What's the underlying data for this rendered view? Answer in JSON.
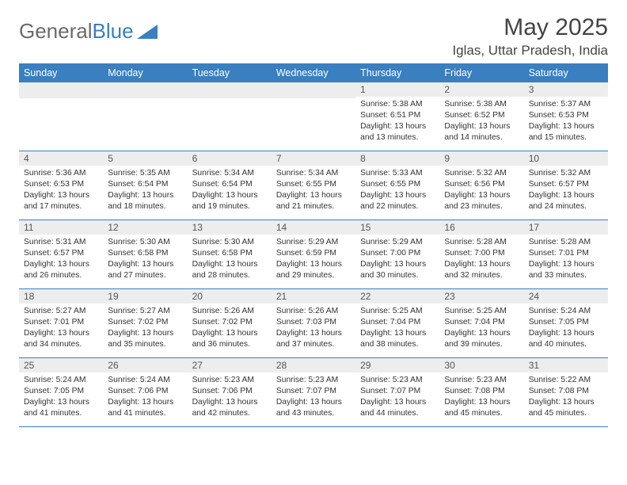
{
  "logo": {
    "text1": "General",
    "text2": "Blue"
  },
  "title": "May 2025",
  "location": "Iglas, Uttar Pradesh, India",
  "theme": {
    "header_bg": "#3a7fbf",
    "header_fg": "#ffffff",
    "daynum_bg": "#ededed",
    "row_border": "#3a7fbf",
    "title_color": "#444444",
    "text_color": "#333333",
    "logo_gray": "#6a6a6a",
    "logo_blue": "#3a7fbf"
  },
  "dow": [
    "Sunday",
    "Monday",
    "Tuesday",
    "Wednesday",
    "Thursday",
    "Friday",
    "Saturday"
  ],
  "weeks": [
    [
      {
        "empty": true
      },
      {
        "empty": true
      },
      {
        "empty": true
      },
      {
        "empty": true
      },
      {
        "n": "1",
        "sr": "Sunrise: 5:38 AM",
        "ss": "Sunset: 6:51 PM",
        "d1": "Daylight: 13 hours",
        "d2": "and 13 minutes."
      },
      {
        "n": "2",
        "sr": "Sunrise: 5:38 AM",
        "ss": "Sunset: 6:52 PM",
        "d1": "Daylight: 13 hours",
        "d2": "and 14 minutes."
      },
      {
        "n": "3",
        "sr": "Sunrise: 5:37 AM",
        "ss": "Sunset: 6:53 PM",
        "d1": "Daylight: 13 hours",
        "d2": "and 15 minutes."
      }
    ],
    [
      {
        "n": "4",
        "sr": "Sunrise: 5:36 AM",
        "ss": "Sunset: 6:53 PM",
        "d1": "Daylight: 13 hours",
        "d2": "and 17 minutes."
      },
      {
        "n": "5",
        "sr": "Sunrise: 5:35 AM",
        "ss": "Sunset: 6:54 PM",
        "d1": "Daylight: 13 hours",
        "d2": "and 18 minutes."
      },
      {
        "n": "6",
        "sr": "Sunrise: 5:34 AM",
        "ss": "Sunset: 6:54 PM",
        "d1": "Daylight: 13 hours",
        "d2": "and 19 minutes."
      },
      {
        "n": "7",
        "sr": "Sunrise: 5:34 AM",
        "ss": "Sunset: 6:55 PM",
        "d1": "Daylight: 13 hours",
        "d2": "and 21 minutes."
      },
      {
        "n": "8",
        "sr": "Sunrise: 5:33 AM",
        "ss": "Sunset: 6:55 PM",
        "d1": "Daylight: 13 hours",
        "d2": "and 22 minutes."
      },
      {
        "n": "9",
        "sr": "Sunrise: 5:32 AM",
        "ss": "Sunset: 6:56 PM",
        "d1": "Daylight: 13 hours",
        "d2": "and 23 minutes."
      },
      {
        "n": "10",
        "sr": "Sunrise: 5:32 AM",
        "ss": "Sunset: 6:57 PM",
        "d1": "Daylight: 13 hours",
        "d2": "and 24 minutes."
      }
    ],
    [
      {
        "n": "11",
        "sr": "Sunrise: 5:31 AM",
        "ss": "Sunset: 6:57 PM",
        "d1": "Daylight: 13 hours",
        "d2": "and 26 minutes."
      },
      {
        "n": "12",
        "sr": "Sunrise: 5:30 AM",
        "ss": "Sunset: 6:58 PM",
        "d1": "Daylight: 13 hours",
        "d2": "and 27 minutes."
      },
      {
        "n": "13",
        "sr": "Sunrise: 5:30 AM",
        "ss": "Sunset: 6:58 PM",
        "d1": "Daylight: 13 hours",
        "d2": "and 28 minutes."
      },
      {
        "n": "14",
        "sr": "Sunrise: 5:29 AM",
        "ss": "Sunset: 6:59 PM",
        "d1": "Daylight: 13 hours",
        "d2": "and 29 minutes."
      },
      {
        "n": "15",
        "sr": "Sunrise: 5:29 AM",
        "ss": "Sunset: 7:00 PM",
        "d1": "Daylight: 13 hours",
        "d2": "and 30 minutes."
      },
      {
        "n": "16",
        "sr": "Sunrise: 5:28 AM",
        "ss": "Sunset: 7:00 PM",
        "d1": "Daylight: 13 hours",
        "d2": "and 32 minutes."
      },
      {
        "n": "17",
        "sr": "Sunrise: 5:28 AM",
        "ss": "Sunset: 7:01 PM",
        "d1": "Daylight: 13 hours",
        "d2": "and 33 minutes."
      }
    ],
    [
      {
        "n": "18",
        "sr": "Sunrise: 5:27 AM",
        "ss": "Sunset: 7:01 PM",
        "d1": "Daylight: 13 hours",
        "d2": "and 34 minutes."
      },
      {
        "n": "19",
        "sr": "Sunrise: 5:27 AM",
        "ss": "Sunset: 7:02 PM",
        "d1": "Daylight: 13 hours",
        "d2": "and 35 minutes."
      },
      {
        "n": "20",
        "sr": "Sunrise: 5:26 AM",
        "ss": "Sunset: 7:02 PM",
        "d1": "Daylight: 13 hours",
        "d2": "and 36 minutes."
      },
      {
        "n": "21",
        "sr": "Sunrise: 5:26 AM",
        "ss": "Sunset: 7:03 PM",
        "d1": "Daylight: 13 hours",
        "d2": "and 37 minutes."
      },
      {
        "n": "22",
        "sr": "Sunrise: 5:25 AM",
        "ss": "Sunset: 7:04 PM",
        "d1": "Daylight: 13 hours",
        "d2": "and 38 minutes."
      },
      {
        "n": "23",
        "sr": "Sunrise: 5:25 AM",
        "ss": "Sunset: 7:04 PM",
        "d1": "Daylight: 13 hours",
        "d2": "and 39 minutes."
      },
      {
        "n": "24",
        "sr": "Sunrise: 5:24 AM",
        "ss": "Sunset: 7:05 PM",
        "d1": "Daylight: 13 hours",
        "d2": "and 40 minutes."
      }
    ],
    [
      {
        "n": "25",
        "sr": "Sunrise: 5:24 AM",
        "ss": "Sunset: 7:05 PM",
        "d1": "Daylight: 13 hours",
        "d2": "and 41 minutes."
      },
      {
        "n": "26",
        "sr": "Sunrise: 5:24 AM",
        "ss": "Sunset: 7:06 PM",
        "d1": "Daylight: 13 hours",
        "d2": "and 41 minutes."
      },
      {
        "n": "27",
        "sr": "Sunrise: 5:23 AM",
        "ss": "Sunset: 7:06 PM",
        "d1": "Daylight: 13 hours",
        "d2": "and 42 minutes."
      },
      {
        "n": "28",
        "sr": "Sunrise: 5:23 AM",
        "ss": "Sunset: 7:07 PM",
        "d1": "Daylight: 13 hours",
        "d2": "and 43 minutes."
      },
      {
        "n": "29",
        "sr": "Sunrise: 5:23 AM",
        "ss": "Sunset: 7:07 PM",
        "d1": "Daylight: 13 hours",
        "d2": "and 44 minutes."
      },
      {
        "n": "30",
        "sr": "Sunrise: 5:23 AM",
        "ss": "Sunset: 7:08 PM",
        "d1": "Daylight: 13 hours",
        "d2": "and 45 minutes."
      },
      {
        "n": "31",
        "sr": "Sunrise: 5:22 AM",
        "ss": "Sunset: 7:08 PM",
        "d1": "Daylight: 13 hours",
        "d2": "and 45 minutes."
      }
    ]
  ]
}
